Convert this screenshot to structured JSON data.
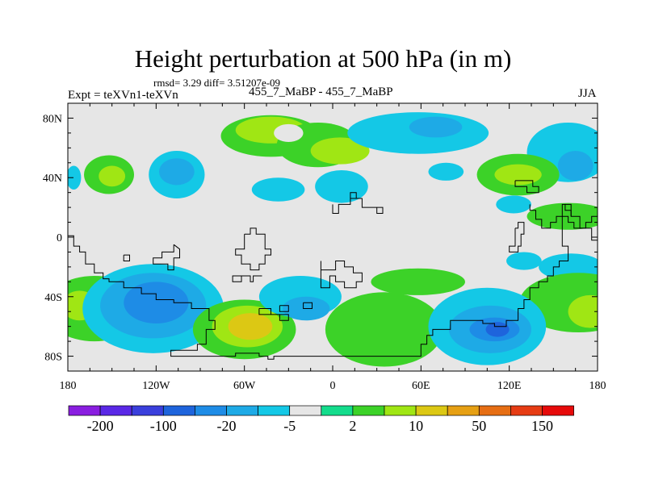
{
  "chart_data": {
    "type": "heatmap",
    "title": "Height perturbation at 500 hPa (in m)",
    "stats_line": "rmsd= 3.29  diff= 3.51207e-09",
    "left_label": "Expt = teXVn1-teXVn",
    "center_label": "455_7_MaBP - 455_7_MaBP",
    "right_label": "JJA",
    "x_range": [
      -180,
      180
    ],
    "y_range": [
      -90,
      90
    ],
    "x_ticks": [
      {
        "value": -180,
        "label": "180"
      },
      {
        "value": -120,
        "label": "120W"
      },
      {
        "value": -60,
        "label": "60W"
      },
      {
        "value": 0,
        "label": "0"
      },
      {
        "value": 60,
        "label": "60E"
      },
      {
        "value": 120,
        "label": "120E"
      },
      {
        "value": 180,
        "label": "180"
      }
    ],
    "y_ticks": [
      {
        "value": 80,
        "label": "80N"
      },
      {
        "value": 40,
        "label": "40N"
      },
      {
        "value": 0,
        "label": "0"
      },
      {
        "value": -40,
        "label": "40S"
      },
      {
        "value": -80,
        "label": "80S"
      }
    ],
    "colorbar": {
      "colors": [
        "#8a1ee0",
        "#5a28e6",
        "#3a3fdc",
        "#1e64dc",
        "#1e8ce6",
        "#1eaae6",
        "#14c8e6",
        "#e6e6e6",
        "#14dc8c",
        "#3cd228",
        "#a0e614",
        "#dcc814",
        "#e6a014",
        "#e66e14",
        "#e63c14",
        "#e60a0a"
      ],
      "labels": [
        {
          "after_box": 1,
          "text": "-200"
        },
        {
          "after_box": 3,
          "text": "-100"
        },
        {
          "after_box": 5,
          "text": "-20"
        },
        {
          "after_box": 7,
          "text": "-5"
        },
        {
          "after_box": 9,
          "text": "2"
        },
        {
          "after_box": 11,
          "text": "10"
        },
        {
          "after_box": 13,
          "text": "50"
        },
        {
          "after_box": 15,
          "text": "150"
        }
      ]
    },
    "anomalies": [
      {
        "lon": -42,
        "lat": 68,
        "rx": 34,
        "ry": 14,
        "level": 9
      },
      {
        "lon": -42,
        "lat": 72,
        "rx": 24,
        "ry": 9,
        "level": 10
      },
      {
        "lon": -10,
        "lat": 62,
        "rx": 28,
        "ry": 15,
        "level": 9
      },
      {
        "lon": 5,
        "lat": 58,
        "rx": 20,
        "ry": 9,
        "level": 10
      },
      {
        "lon": 58,
        "lat": 70,
        "rx": 48,
        "ry": 14,
        "level": 6
      },
      {
        "lon": 70,
        "lat": 74,
        "rx": 18,
        "ry": 7,
        "level": 5
      },
      {
        "lon": 160,
        "lat": 57,
        "rx": 28,
        "ry": 20,
        "level": 6
      },
      {
        "lon": 165,
        "lat": 48,
        "rx": 12,
        "ry": 10,
        "level": 5
      },
      {
        "lon": 6,
        "lat": 34,
        "rx": 18,
        "ry": 11,
        "level": 6
      },
      {
        "lon": -37,
        "lat": 32,
        "rx": 18,
        "ry": 8,
        "level": 6
      },
      {
        "lon": -106,
        "lat": 42,
        "rx": 19,
        "ry": 16,
        "level": 6
      },
      {
        "lon": -106,
        "lat": 44,
        "rx": 12,
        "ry": 9,
        "level": 5
      },
      {
        "lon": -152,
        "lat": 42,
        "rx": 17,
        "ry": 13,
        "level": 9
      },
      {
        "lon": -150,
        "lat": 41,
        "rx": 9,
        "ry": 7,
        "level": 10
      },
      {
        "lon": 126,
        "lat": 42,
        "rx": 28,
        "ry": 14,
        "level": 9
      },
      {
        "lon": 126,
        "lat": 42,
        "rx": 16,
        "ry": 7,
        "level": 10
      },
      {
        "lon": 77,
        "lat": 44,
        "rx": 12,
        "ry": 6,
        "level": 6
      },
      {
        "lon": 123,
        "lat": 22,
        "rx": 12,
        "ry": 6,
        "level": 6
      },
      {
        "lon": -176,
        "lat": 40,
        "rx": 5,
        "ry": 8,
        "level": 6
      },
      {
        "lon": 160,
        "lat": 14,
        "rx": 28,
        "ry": 9,
        "level": 9
      },
      {
        "lon": 162,
        "lat": -20,
        "rx": 22,
        "ry": 9,
        "level": 6
      },
      {
        "lon": -162,
        "lat": -48,
        "rx": 34,
        "ry": 22,
        "level": 9
      },
      {
        "lon": -172,
        "lat": -46,
        "rx": 12,
        "ry": 10,
        "level": 10
      },
      {
        "lon": 167,
        "lat": -44,
        "rx": 40,
        "ry": 20,
        "level": 9
      },
      {
        "lon": 175,
        "lat": -50,
        "rx": 15,
        "ry": 11,
        "level": 10
      },
      {
        "lon": -122,
        "lat": -48,
        "rx": 48,
        "ry": 30,
        "level": 6
      },
      {
        "lon": -122,
        "lat": -46,
        "rx": 36,
        "ry": 22,
        "level": 5
      },
      {
        "lon": -120,
        "lat": -44,
        "rx": 22,
        "ry": 14,
        "level": 4
      },
      {
        "lon": -60,
        "lat": -62,
        "rx": 35,
        "ry": 20,
        "level": 9
      },
      {
        "lon": -58,
        "lat": -60,
        "rx": 24,
        "ry": 14,
        "level": 10
      },
      {
        "lon": -56,
        "lat": -60,
        "rx": 15,
        "ry": 9,
        "level": 11
      },
      {
        "lon": -22,
        "lat": -40,
        "rx": 28,
        "ry": 14,
        "level": 6
      },
      {
        "lon": -18,
        "lat": -48,
        "rx": 16,
        "ry": 8,
        "level": 5
      },
      {
        "lon": 35,
        "lat": -62,
        "rx": 40,
        "ry": 25,
        "level": 9
      },
      {
        "lon": 58,
        "lat": -30,
        "rx": 32,
        "ry": 9,
        "level": 9
      },
      {
        "lon": 105,
        "lat": -60,
        "rx": 40,
        "ry": 26,
        "level": 6
      },
      {
        "lon": 107,
        "lat": -62,
        "rx": 28,
        "ry": 16,
        "level": 5
      },
      {
        "lon": 110,
        "lat": -62,
        "rx": 17,
        "ry": 8,
        "level": 4
      },
      {
        "lon": 112,
        "lat": -62,
        "rx": 8,
        "ry": 5,
        "level": 3
      },
      {
        "lon": 130,
        "lat": -16,
        "rx": 12,
        "ry": 6,
        "level": 6
      },
      {
        "lon": -30,
        "lat": 70,
        "rx": 10,
        "ry": 6,
        "level": 7
      }
    ],
    "coastlines": [
      [
        [
          -180,
          1
        ],
        [
          -176,
          1
        ],
        [
          -176,
          -6
        ],
        [
          -172,
          -6
        ],
        [
          -172,
          -10
        ],
        [
          -168,
          -10
        ],
        [
          -168,
          -18
        ],
        [
          -162,
          -18
        ],
        [
          -162,
          -24
        ],
        [
          -156,
          -24
        ],
        [
          -156,
          -28
        ],
        [
          -152,
          -28
        ],
        [
          -152,
          -30
        ],
        [
          -142,
          -30
        ],
        [
          -142,
          -34
        ],
        [
          -130,
          -34
        ],
        [
          -130,
          -38
        ],
        [
          -120,
          -38
        ],
        [
          -120,
          -42
        ],
        [
          -108,
          -42
        ],
        [
          -108,
          -44
        ],
        [
          -96,
          -44
        ],
        [
          -96,
          -48
        ],
        [
          -84,
          -48
        ],
        [
          -84,
          -56
        ],
        [
          -80,
          -56
        ],
        [
          -80,
          -62
        ],
        [
          -86,
          -62
        ],
        [
          -86,
          -72
        ],
        [
          -92,
          -72
        ],
        [
          -92,
          -76
        ],
        [
          -110,
          -76
        ],
        [
          -110,
          -80
        ],
        [
          -66,
          -80
        ],
        [
          -66,
          -78
        ],
        [
          -50,
          -78
        ],
        [
          -50,
          -80
        ],
        [
          -44,
          -80
        ],
        [
          -44,
          -82
        ],
        [
          -40,
          -82
        ],
        [
          -40,
          -80
        ],
        [
          60,
          -80
        ],
        [
          60,
          -72
        ],
        [
          64,
          -72
        ],
        [
          64,
          -66
        ],
        [
          68,
          -66
        ],
        [
          68,
          -62
        ],
        [
          80,
          -62
        ],
        [
          80,
          -56
        ],
        [
          102,
          -56
        ],
        [
          102,
          -58
        ],
        [
          110,
          -58
        ],
        [
          110,
          -60
        ],
        [
          118,
          -60
        ],
        [
          118,
          -56
        ],
        [
          126,
          -56
        ],
        [
          126,
          -48
        ],
        [
          130,
          -48
        ],
        [
          130,
          -42
        ],
        [
          134,
          -42
        ],
        [
          134,
          -34
        ],
        [
          140,
          -34
        ],
        [
          140,
          -30
        ],
        [
          146,
          -30
        ],
        [
          146,
          -26
        ],
        [
          150,
          -26
        ],
        [
          150,
          -20
        ],
        [
          154,
          -20
        ],
        [
          154,
          -16
        ],
        [
          160,
          -16
        ],
        [
          160,
          -6
        ],
        [
          156,
          -6
        ],
        [
          156,
          22
        ],
        [
          162,
          22
        ],
        [
          162,
          14
        ],
        [
          168,
          14
        ],
        [
          168,
          6
        ],
        [
          176,
          6
        ],
        [
          176,
          -2
        ],
        [
          180,
          -2
        ]
      ],
      [
        [
          -108,
          -5
        ],
        [
          -108,
          -10
        ],
        [
          -116,
          -10
        ],
        [
          -116,
          -14
        ],
        [
          -122,
          -14
        ],
        [
          -122,
          -18
        ],
        [
          -112,
          -18
        ],
        [
          -112,
          -22
        ],
        [
          -108,
          -22
        ],
        [
          -108,
          -14
        ],
        [
          -104,
          -14
        ],
        [
          -104,
          -8
        ],
        [
          -108,
          -5
        ]
      ],
      [
        [
          -142,
          -12
        ],
        [
          -142,
          -16
        ],
        [
          -138,
          -16
        ],
        [
          -138,
          -12
        ],
        [
          -142,
          -12
        ]
      ],
      [
        [
          -60,
          2
        ],
        [
          -60,
          -8
        ],
        [
          -66,
          -8
        ],
        [
          -66,
          -12
        ],
        [
          -62,
          -12
        ],
        [
          -62,
          -18
        ],
        [
          -56,
          -18
        ],
        [
          -56,
          -22
        ],
        [
          -50,
          -22
        ],
        [
          -50,
          -18
        ],
        [
          -46,
          -18
        ],
        [
          -46,
          -12
        ],
        [
          -42,
          -12
        ],
        [
          -42,
          -8
        ],
        [
          -46,
          -8
        ],
        [
          -46,
          2
        ],
        [
          -52,
          2
        ],
        [
          -52,
          6
        ],
        [
          -56,
          6
        ],
        [
          -56,
          2
        ],
        [
          -60,
          2
        ]
      ],
      [
        [
          -48,
          -26
        ],
        [
          -54,
          -26
        ],
        [
          -54,
          -30
        ],
        [
          -56,
          -30
        ],
        [
          -56,
          -26
        ],
        [
          -62,
          -26
        ],
        [
          -62,
          -30
        ],
        [
          -68,
          -30
        ],
        [
          -68,
          -26
        ],
        [
          -62,
          -26
        ]
      ],
      [
        [
          -50,
          -48
        ],
        [
          -50,
          -52
        ],
        [
          -36,
          -52
        ],
        [
          -36,
          -56
        ],
        [
          -30,
          -56
        ],
        [
          -30,
          -52
        ],
        [
          -42,
          -52
        ],
        [
          -42,
          -48
        ],
        [
          -50,
          -48
        ]
      ],
      [
        [
          -8,
          -16
        ],
        [
          -8,
          -22
        ],
        [
          2,
          -22
        ],
        [
          2,
          -16
        ],
        [
          8,
          -16
        ],
        [
          8,
          -20
        ],
        [
          14,
          -20
        ],
        [
          14,
          -24
        ],
        [
          20,
          -24
        ],
        [
          20,
          -30
        ],
        [
          16,
          -30
        ],
        [
          16,
          -34
        ],
        [
          8,
          -34
        ],
        [
          8,
          -30
        ],
        [
          2,
          -30
        ],
        [
          2,
          -26
        ],
        [
          -2,
          -26
        ],
        [
          -2,
          -34
        ],
        [
          -8,
          -34
        ],
        [
          -8,
          -16
        ]
      ],
      [
        [
          -20,
          -44
        ],
        [
          -20,
          -48
        ],
        [
          -14,
          -48
        ],
        [
          -14,
          -44
        ],
        [
          -20,
          -44
        ]
      ],
      [
        [
          -36,
          -46
        ],
        [
          -36,
          -50
        ],
        [
          -30,
          -50
        ],
        [
          -30,
          -46
        ],
        [
          -36,
          -46
        ]
      ],
      [
        [
          0,
          22
        ],
        [
          0,
          16
        ],
        [
          4,
          16
        ],
        [
          4,
          22
        ],
        [
          12,
          22
        ],
        [
          12,
          26
        ],
        [
          20,
          26
        ],
        [
          20,
          20
        ],
        [
          30,
          20
        ],
        [
          30,
          16
        ],
        [
          34,
          16
        ],
        [
          34,
          20
        ],
        [
          30,
          20
        ]
      ],
      [
        [
          12,
          26
        ],
        [
          12,
          30
        ],
        [
          16,
          30
        ],
        [
          16,
          26
        ]
      ],
      [
        [
          124,
          38
        ],
        [
          124,
          34
        ],
        [
          132,
          34
        ],
        [
          132,
          30
        ],
        [
          140,
          30
        ],
        [
          140,
          34
        ],
        [
          136,
          34
        ],
        [
          136,
          38
        ],
        [
          124,
          38
        ]
      ],
      [
        [
          134,
          22
        ],
        [
          134,
          18
        ],
        [
          138,
          18
        ],
        [
          138,
          12
        ],
        [
          142,
          12
        ],
        [
          142,
          6
        ],
        [
          148,
          6
        ],
        [
          148,
          10
        ],
        [
          152,
          10
        ],
        [
          152,
          14
        ],
        [
          160,
          14
        ],
        [
          160,
          10
        ],
        [
          164,
          10
        ],
        [
          164,
          6
        ],
        [
          172,
          6
        ],
        [
          172,
          10
        ],
        [
          176,
          10
        ],
        [
          176,
          14
        ],
        [
          180,
          14
        ]
      ],
      [
        [
          124,
          6
        ],
        [
          124,
          -6
        ],
        [
          120,
          -6
        ],
        [
          120,
          -10
        ],
        [
          126,
          -10
        ],
        [
          126,
          -6
        ],
        [
          128,
          -6
        ],
        [
          128,
          2
        ],
        [
          130,
          2
        ],
        [
          130,
          10
        ],
        [
          126,
          10
        ],
        [
          126,
          6
        ],
        [
          124,
          6
        ]
      ],
      [
        [
          158,
          22
        ],
        [
          158,
          18
        ],
        [
          162,
          18
        ],
        [
          162,
          14
        ]
      ]
    ]
  }
}
